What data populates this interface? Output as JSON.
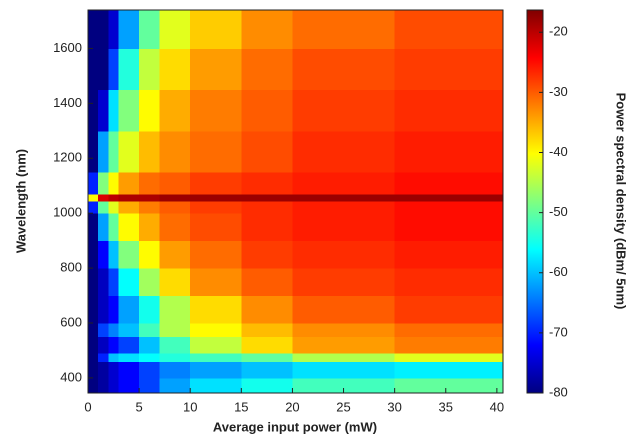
{
  "chart_data": {
    "type": "heatmap",
    "colormap": "jet",
    "x_label": "Average input power (mW)",
    "y_label": "Wavelength (nm)",
    "colorbar_label": "Power spectral density (dBm/ 5nm)",
    "xlim": [
      0,
      40.6
    ],
    "ylim": [
      345,
      1740
    ],
    "xticks": [
      0,
      5,
      10,
      15,
      20,
      25,
      30,
      35,
      40
    ],
    "yticks": [
      400,
      600,
      800,
      1000,
      1200,
      1400,
      1600
    ],
    "clim": [
      -80,
      -16.3
    ],
    "cticks": [
      -80,
      -70,
      -60,
      -50,
      -40,
      -30,
      -20
    ],
    "x_edges": [
      0,
      1,
      2,
      3,
      5,
      7,
      10,
      15,
      20,
      30,
      40.6
    ],
    "y_edges": [
      345,
      400,
      460,
      490,
      550,
      600,
      700,
      800,
      900,
      1000,
      1045,
      1070,
      1150,
      1300,
      1450,
      1600,
      1740
    ],
    "values": [
      [
        -80,
        -78,
        -75,
        -72,
        -68,
        -62,
        -58,
        -55,
        -52,
        -50
      ],
      [
        -80,
        -78,
        -75,
        -72,
        -68,
        -64,
        -62,
        -60,
        -58,
        -57
      ],
      [
        -80,
        -70,
        -60,
        -58,
        -56,
        -54,
        -52,
        -50,
        -45,
        -42
      ],
      [
        -80,
        -76,
        -72,
        -68,
        -60,
        -52,
        -44,
        -38,
        -34,
        -32
      ],
      [
        -80,
        -68,
        -64,
        -60,
        -52,
        -45,
        -40,
        -36,
        -33,
        -31
      ],
      [
        -80,
        -76,
        -72,
        -62,
        -55,
        -45,
        -38,
        -33,
        -30,
        -28
      ],
      [
        -80,
        -76,
        -68,
        -56,
        -46,
        -38,
        -33,
        -30,
        -28,
        -27
      ],
      [
        -80,
        -72,
        -60,
        -48,
        -40,
        -34,
        -31,
        -28,
        -27,
        -26
      ],
      [
        -80,
        -62,
        -50,
        -40,
        -35,
        -31,
        -29,
        -27,
        -26,
        -25
      ],
      [
        -70,
        -50,
        -42,
        -35,
        -32,
        -30,
        -28,
        -27,
        -26,
        -25
      ],
      [
        -40,
        -22,
        -20,
        -19,
        -19,
        -18,
        -18,
        -18,
        -18,
        -18
      ],
      [
        -70,
        -48,
        -40,
        -34,
        -31,
        -30,
        -28,
        -27,
        -26,
        -25
      ],
      [
        -80,
        -62,
        -50,
        -42,
        -36,
        -33,
        -31,
        -29,
        -27,
        -26
      ],
      [
        -80,
        -75,
        -58,
        -48,
        -40,
        -35,
        -32,
        -30,
        -28,
        -27
      ],
      [
        -80,
        -80,
        -68,
        -54,
        -44,
        -38,
        -34,
        -31,
        -29,
        -28
      ],
      [
        -80,
        -80,
        -75,
        -62,
        -50,
        -42,
        -37,
        -33,
        -31,
        -29
      ]
    ]
  }
}
